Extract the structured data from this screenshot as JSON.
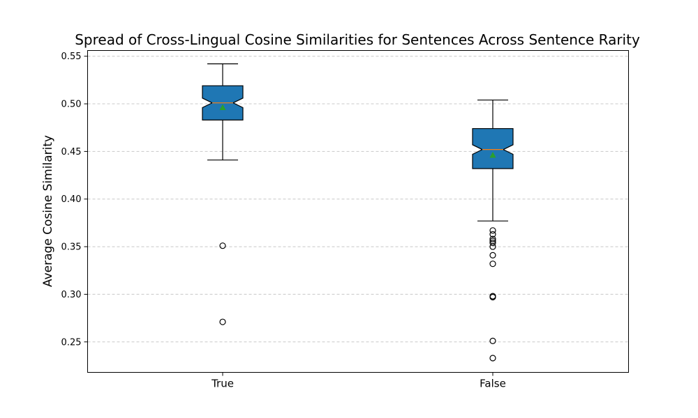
{
  "chart_data": {
    "type": "box",
    "title": "Spread of Cross-Lingual Cosine Similarities for Sentences Across Sentence Rarity",
    "xlabel": "",
    "ylabel": "Average Cosine Similarity",
    "ylim": [
      0.218,
      0.556
    ],
    "yticks": [
      0.25,
      0.3,
      0.35,
      0.4,
      0.45,
      0.5,
      0.55
    ],
    "ytick_labels": [
      "0.25",
      "0.30",
      "0.35",
      "0.40",
      "0.45",
      "0.50",
      "0.55"
    ],
    "grid": "horizontal-dashed",
    "categories": [
      "True",
      "False"
    ],
    "boxes": [
      {
        "category": "True",
        "whisker_low": 0.441,
        "q1": 0.483,
        "median": 0.501,
        "notch_low": 0.496,
        "notch_high": 0.506,
        "q3": 0.519,
        "whisker_high": 0.542,
        "mean": 0.496,
        "outliers": [
          0.351,
          0.271
        ]
      },
      {
        "category": "False",
        "whisker_low": 0.377,
        "q1": 0.432,
        "median": 0.452,
        "notch_low": 0.447,
        "notch_high": 0.457,
        "q3": 0.474,
        "whisker_high": 0.504,
        "mean": 0.446,
        "outliers": [
          0.367,
          0.363,
          0.358,
          0.356,
          0.354,
          0.35,
          0.341,
          0.332,
          0.298,
          0.297,
          0.251,
          0.233
        ]
      }
    ],
    "colors": {
      "box_fill": "#1f77b4",
      "median_line": "#ff7f0e",
      "mean_marker": "#2ca02c",
      "grid": "#c8c8c8"
    }
  }
}
